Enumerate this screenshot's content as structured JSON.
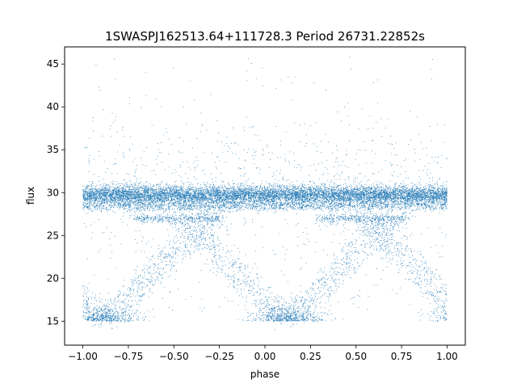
{
  "chart_data": {
    "type": "scatter",
    "title": "1SWASPJ162513.64+111728.3 Period 26731.22852s",
    "xlabel": "phase",
    "ylabel": "flux",
    "xlim": [
      -1.1,
      1.1
    ],
    "ylim": [
      12.2,
      47
    ],
    "x_ticks": [
      -1.0,
      -0.75,
      -0.5,
      -0.25,
      0.0,
      0.25,
      0.5,
      0.75,
      1.0
    ],
    "x_tick_labels": [
      "−1.00",
      "−0.75",
      "−0.50",
      "−0.25",
      "0.00",
      "0.25",
      "0.50",
      "0.75",
      "1.00"
    ],
    "y_ticks": [
      15,
      20,
      25,
      30,
      35,
      40,
      45
    ],
    "y_tick_labels": [
      "15",
      "20",
      "25",
      "30",
      "35",
      "40",
      "45"
    ],
    "grid": false,
    "legend": "none",
    "series_color": "#1f77b4",
    "series": [
      {
        "baseline_flux": 29.7,
        "baseline_band": [
          28.2,
          31.3
        ],
        "faint_baseline_flux": 27.0,
        "eclipse_min_flux": 15.0,
        "eclipse_centers_phase": [
          -0.88,
          0.12,
          1.12
        ],
        "eclipse_ingress_phase": [
          -0.72,
          -0.2,
          0.28,
          0.8
        ],
        "x_range": [
          -1.0,
          1.0
        ]
      }
    ]
  }
}
